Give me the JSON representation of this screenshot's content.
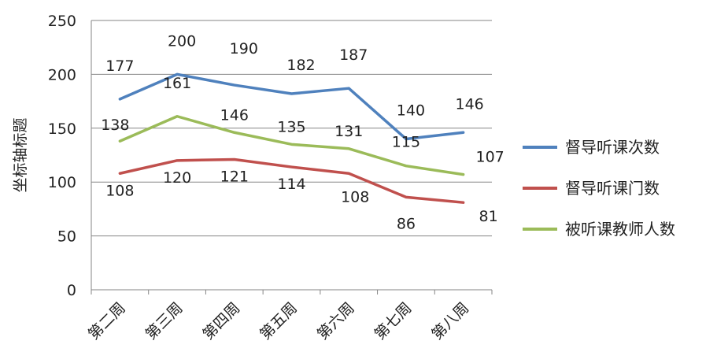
{
  "chart_data": {
    "type": "line",
    "categories": [
      "第二周",
      "第三周",
      "第四周",
      "第五周",
      "第六周",
      "第七周",
      "第八周"
    ],
    "ylabel": "坐标轴标题",
    "ylim": [
      0,
      250
    ],
    "yticks": [
      0,
      50,
      100,
      150,
      200,
      250
    ],
    "grid": true,
    "legend_position": "right",
    "series": [
      {
        "name": "督导听课次数",
        "color": "#4f81bd",
        "values": [
          177,
          200,
          190,
          182,
          187,
          140,
          146
        ],
        "labels": [
          "177",
          "200",
          "190",
          "182",
          "187",
          "140",
          "146"
        ]
      },
      {
        "name": "督导听课门数",
        "color": "#c0504d",
        "values": [
          108,
          120,
          121,
          114,
          108,
          86,
          81
        ],
        "labels": [
          "108",
          "120",
          "121",
          "114",
          "108",
          "86",
          "81"
        ]
      },
      {
        "name": "被听课教师人数",
        "color": "#9bbb59",
        "values": [
          138,
          161,
          146,
          135,
          131,
          115,
          107
        ],
        "labels": [
          "138",
          "161",
          "146",
          "135",
          "131",
          "115",
          "107"
        ]
      }
    ]
  }
}
